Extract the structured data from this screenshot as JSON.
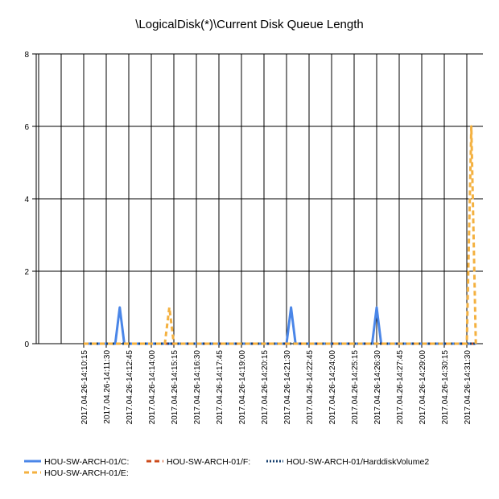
{
  "chart_data": {
    "type": "line",
    "title": "\\LogicalDisk(*)\\Current Disk Queue Length",
    "xlabel": "",
    "ylabel": "",
    "ylim": [
      0,
      8
    ],
    "yticks": [
      0,
      2,
      4,
      6,
      8
    ],
    "grid": true,
    "legend_position": "bottom",
    "x_tick_labels": [
      "2017.04.26-14:10:15",
      "2017.04.26-14:11:30",
      "2017.04.26-14:12:45",
      "2017.04.26-14:14:00",
      "2017.04.26-14:15:15",
      "2017.04.26-14:16:30",
      "2017.04.26-14:17:45",
      "2017.04.26-14:19:00",
      "2017.04.26-14:20:15",
      "2017.04.26-14:21:30",
      "2017.04.26-14:22:45",
      "2017.04.26-14:24:00",
      "2017.04.26-14:25:15",
      "2017.04.26-14:26:30",
      "2017.04.26-14:27:45",
      "2017.04.26-14:29:00",
      "2017.04.26-14:30:15",
      "2017.04.26-14:31:30"
    ],
    "series": [
      {
        "name": "HOU-SW-ARCH-01/C:",
        "color": "#4a86e8",
        "dash": "solid",
        "points": [
          [
            "2017.04.26-14:10:15",
            0
          ],
          [
            "2017.04.26-14:12:00",
            0
          ],
          [
            "2017.04.26-14:12:15",
            1
          ],
          [
            "2017.04.26-14:12:30",
            0
          ],
          [
            "2017.04.26-14:21:30",
            0
          ],
          [
            "2017.04.26-14:21:45",
            1
          ],
          [
            "2017.04.26-14:22:00",
            0
          ],
          [
            "2017.04.26-14:26:15",
            0
          ],
          [
            "2017.04.26-14:26:30",
            1
          ],
          [
            "2017.04.26-14:26:45",
            0
          ],
          [
            "2017.04.26-14:32:00",
            0
          ]
        ]
      },
      {
        "name": "HOU-SW-ARCH-01/F:",
        "color": "#cc4a1a",
        "dash": "dash",
        "points": [
          [
            "2017.04.26-14:10:15",
            0
          ],
          [
            "2017.04.26-14:32:00",
            0
          ]
        ]
      },
      {
        "name": "HOU-SW-ARCH-01/HarddiskVolume2",
        "color": "#17406e",
        "dash": "dot",
        "points": [
          [
            "2017.04.26-14:10:15",
            0
          ],
          [
            "2017.04.26-14:32:00",
            0
          ]
        ]
      },
      {
        "name": "HOU-SW-ARCH-01/E:",
        "color": "#f4b140",
        "dash": "dash",
        "points": [
          [
            "2017.04.26-14:10:15",
            0
          ],
          [
            "2017.04.26-14:14:45",
            0
          ],
          [
            "2017.04.26-14:15:00",
            1
          ],
          [
            "2017.04.26-14:15:15",
            0
          ],
          [
            "2017.04.26-14:31:30",
            0
          ],
          [
            "2017.04.26-14:31:45",
            6
          ],
          [
            "2017.04.26-14:32:00",
            0
          ]
        ]
      }
    ]
  }
}
